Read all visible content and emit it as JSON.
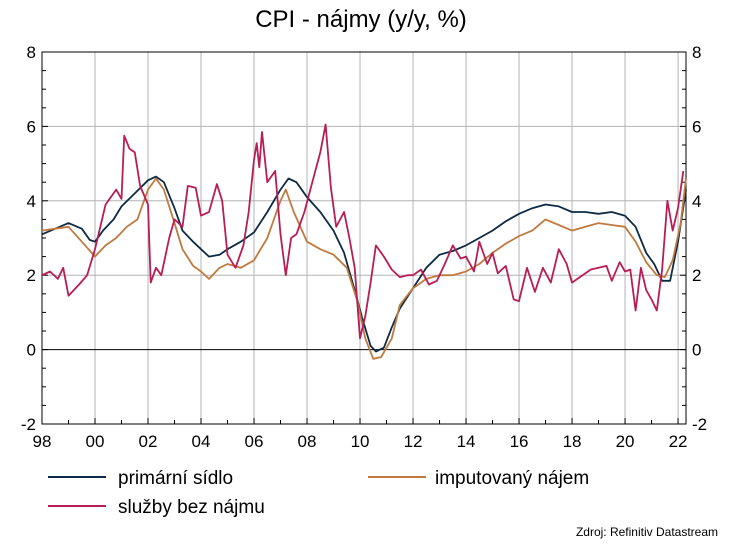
{
  "chart_data": {
    "type": "line",
    "title": "CPI - nájmy (y/y, %)",
    "source": "Zdroj: Refinitiv Datastream",
    "x_axis": {
      "range": [
        1998,
        2022.3
      ],
      "ticks": [
        1998,
        2000,
        2002,
        2004,
        2006,
        2008,
        2010,
        2012,
        2014,
        2016,
        2018,
        2020,
        2022
      ],
      "tick_labels": [
        "98",
        "00",
        "02",
        "04",
        "06",
        "08",
        "10",
        "12",
        "14",
        "16",
        "18",
        "20",
        "22"
      ]
    },
    "y_axis": {
      "range": [
        -2,
        8
      ],
      "ticks": [
        -2,
        0,
        2,
        4,
        6,
        8
      ],
      "tick_labels": [
        "-2",
        "0",
        "2",
        "4",
        "6",
        "8"
      ],
      "dual_axis": true
    },
    "grid": true,
    "legend_position": "bottom",
    "series": [
      {
        "name": "primární sídlo",
        "color": "#0d2b45",
        "points": [
          [
            1998.0,
            3.1
          ],
          [
            1998.5,
            3.25
          ],
          [
            1999.0,
            3.4
          ],
          [
            1999.5,
            3.25
          ],
          [
            1999.8,
            2.95
          ],
          [
            2000.0,
            2.9
          ],
          [
            2000.3,
            3.2
          ],
          [
            2000.7,
            3.5
          ],
          [
            2001.0,
            3.85
          ],
          [
            2001.5,
            4.2
          ],
          [
            2002.0,
            4.55
          ],
          [
            2002.3,
            4.65
          ],
          [
            2002.6,
            4.5
          ],
          [
            2003.0,
            3.8
          ],
          [
            2003.3,
            3.2
          ],
          [
            2003.7,
            2.9
          ],
          [
            2004.0,
            2.7
          ],
          [
            2004.3,
            2.5
          ],
          [
            2004.7,
            2.55
          ],
          [
            2005.0,
            2.7
          ],
          [
            2005.5,
            2.9
          ],
          [
            2006.0,
            3.15
          ],
          [
            2006.5,
            3.7
          ],
          [
            2007.0,
            4.3
          ],
          [
            2007.3,
            4.6
          ],
          [
            2007.6,
            4.5
          ],
          [
            2008.0,
            4.1
          ],
          [
            2008.5,
            3.7
          ],
          [
            2009.0,
            3.2
          ],
          [
            2009.4,
            2.6
          ],
          [
            2009.8,
            1.6
          ],
          [
            2010.1,
            0.8
          ],
          [
            2010.4,
            0.1
          ],
          [
            2010.6,
            -0.05
          ],
          [
            2010.9,
            0.05
          ],
          [
            2011.2,
            0.6
          ],
          [
            2011.5,
            1.1
          ],
          [
            2012.0,
            1.65
          ],
          [
            2012.5,
            2.2
          ],
          [
            2013.0,
            2.55
          ],
          [
            2013.5,
            2.65
          ],
          [
            2014.0,
            2.8
          ],
          [
            2014.5,
            3.0
          ],
          [
            2015.0,
            3.2
          ],
          [
            2015.5,
            3.45
          ],
          [
            2016.0,
            3.65
          ],
          [
            2016.5,
            3.8
          ],
          [
            2017.0,
            3.9
          ],
          [
            2017.5,
            3.85
          ],
          [
            2018.0,
            3.7
          ],
          [
            2018.5,
            3.7
          ],
          [
            2019.0,
            3.65
          ],
          [
            2019.5,
            3.7
          ],
          [
            2020.0,
            3.6
          ],
          [
            2020.4,
            3.3
          ],
          [
            2020.8,
            2.6
          ],
          [
            2021.1,
            2.3
          ],
          [
            2021.4,
            1.85
          ],
          [
            2021.7,
            1.85
          ],
          [
            2022.0,
            2.9
          ],
          [
            2022.3,
            4.3
          ]
        ]
      },
      {
        "name": "imputovaný nájem",
        "color": "#c07a3f",
        "points": [
          [
            1998.0,
            3.2
          ],
          [
            1998.5,
            3.25
          ],
          [
            1999.0,
            3.3
          ],
          [
            1999.5,
            2.9
          ],
          [
            2000.0,
            2.5
          ],
          [
            2000.4,
            2.8
          ],
          [
            2000.8,
            3.0
          ],
          [
            2001.2,
            3.3
          ],
          [
            2001.6,
            3.5
          ],
          [
            2002.0,
            4.3
          ],
          [
            2002.3,
            4.6
          ],
          [
            2002.6,
            4.3
          ],
          [
            2003.0,
            3.4
          ],
          [
            2003.3,
            2.7
          ],
          [
            2003.7,
            2.25
          ],
          [
            2004.0,
            2.1
          ],
          [
            2004.3,
            1.9
          ],
          [
            2004.7,
            2.2
          ],
          [
            2005.0,
            2.3
          ],
          [
            2005.5,
            2.2
          ],
          [
            2006.0,
            2.4
          ],
          [
            2006.5,
            3.0
          ],
          [
            2007.0,
            4.0
          ],
          [
            2007.2,
            4.3
          ],
          [
            2007.5,
            3.7
          ],
          [
            2008.0,
            2.9
          ],
          [
            2008.5,
            2.7
          ],
          [
            2009.0,
            2.55
          ],
          [
            2009.5,
            2.2
          ],
          [
            2009.9,
            1.3
          ],
          [
            2010.2,
            0.3
          ],
          [
            2010.5,
            -0.25
          ],
          [
            2010.8,
            -0.2
          ],
          [
            2011.2,
            0.3
          ],
          [
            2011.5,
            1.2
          ],
          [
            2012.0,
            1.65
          ],
          [
            2012.5,
            1.9
          ],
          [
            2013.0,
            2.0
          ],
          [
            2013.5,
            2.0
          ],
          [
            2014.0,
            2.1
          ],
          [
            2014.5,
            2.3
          ],
          [
            2015.0,
            2.6
          ],
          [
            2015.5,
            2.85
          ],
          [
            2016.0,
            3.05
          ],
          [
            2016.5,
            3.2
          ],
          [
            2017.0,
            3.5
          ],
          [
            2017.5,
            3.35
          ],
          [
            2018.0,
            3.2
          ],
          [
            2018.5,
            3.3
          ],
          [
            2019.0,
            3.4
          ],
          [
            2019.5,
            3.35
          ],
          [
            2020.0,
            3.3
          ],
          [
            2020.4,
            2.9
          ],
          [
            2020.8,
            2.35
          ],
          [
            2021.2,
            2.0
          ],
          [
            2021.5,
            1.95
          ],
          [
            2021.8,
            2.4
          ],
          [
            2022.1,
            3.4
          ],
          [
            2022.3,
            4.6
          ]
        ]
      },
      {
        "name": "služby bez nájmu",
        "color": "#b81d55",
        "points": [
          [
            1998.0,
            2.0
          ],
          [
            1998.3,
            2.1
          ],
          [
            1998.6,
            1.9
          ],
          [
            1998.8,
            2.2
          ],
          [
            1999.0,
            1.45
          ],
          [
            1999.4,
            1.75
          ],
          [
            1999.7,
            2.0
          ],
          [
            2000.0,
            2.7
          ],
          [
            2000.4,
            3.9
          ],
          [
            2000.8,
            4.3
          ],
          [
            2001.0,
            4.05
          ],
          [
            2001.1,
            5.75
          ],
          [
            2001.3,
            5.4
          ],
          [
            2001.5,
            5.3
          ],
          [
            2001.7,
            4.4
          ],
          [
            2002.0,
            3.9
          ],
          [
            2002.1,
            1.8
          ],
          [
            2002.3,
            2.2
          ],
          [
            2002.5,
            2.0
          ],
          [
            2002.8,
            3.0
          ],
          [
            2003.0,
            3.5
          ],
          [
            2003.3,
            3.3
          ],
          [
            2003.5,
            4.4
          ],
          [
            2003.8,
            4.35
          ],
          [
            2004.0,
            3.6
          ],
          [
            2004.3,
            3.7
          ],
          [
            2004.6,
            4.45
          ],
          [
            2004.8,
            4.0
          ],
          [
            2005.0,
            2.55
          ],
          [
            2005.3,
            2.2
          ],
          [
            2005.6,
            2.8
          ],
          [
            2005.8,
            3.7
          ],
          [
            2006.0,
            5.1
          ],
          [
            2006.1,
            5.55
          ],
          [
            2006.2,
            4.9
          ],
          [
            2006.3,
            5.85
          ],
          [
            2006.5,
            4.5
          ],
          [
            2006.8,
            4.8
          ],
          [
            2007.0,
            3.1
          ],
          [
            2007.2,
            2.0
          ],
          [
            2007.4,
            3.0
          ],
          [
            2007.6,
            3.1
          ],
          [
            2007.9,
            3.7
          ],
          [
            2008.2,
            4.5
          ],
          [
            2008.5,
            5.3
          ],
          [
            2008.7,
            6.05
          ],
          [
            2008.9,
            4.35
          ],
          [
            2009.1,
            3.3
          ],
          [
            2009.4,
            3.7
          ],
          [
            2009.6,
            3.0
          ],
          [
            2009.8,
            2.2
          ],
          [
            2010.0,
            0.3
          ],
          [
            2010.2,
            0.9
          ],
          [
            2010.4,
            1.8
          ],
          [
            2010.6,
            2.8
          ],
          [
            2010.9,
            2.5
          ],
          [
            2011.2,
            2.15
          ],
          [
            2011.5,
            1.95
          ],
          [
            2011.8,
            2.0
          ],
          [
            2012.0,
            2.0
          ],
          [
            2012.3,
            2.15
          ],
          [
            2012.6,
            1.75
          ],
          [
            2012.9,
            1.85
          ],
          [
            2013.2,
            2.3
          ],
          [
            2013.5,
            2.8
          ],
          [
            2013.8,
            2.45
          ],
          [
            2014.0,
            2.5
          ],
          [
            2014.3,
            2.1
          ],
          [
            2014.5,
            2.9
          ],
          [
            2014.8,
            2.3
          ],
          [
            2015.0,
            2.6
          ],
          [
            2015.2,
            2.05
          ],
          [
            2015.5,
            2.25
          ],
          [
            2015.8,
            1.35
          ],
          [
            2016.0,
            1.3
          ],
          [
            2016.3,
            2.2
          ],
          [
            2016.6,
            1.55
          ],
          [
            2016.9,
            2.2
          ],
          [
            2017.2,
            1.8
          ],
          [
            2017.5,
            2.7
          ],
          [
            2017.8,
            2.3
          ],
          [
            2018.0,
            1.8
          ],
          [
            2018.4,
            2.0
          ],
          [
            2018.7,
            2.15
          ],
          [
            2019.0,
            2.2
          ],
          [
            2019.3,
            2.25
          ],
          [
            2019.5,
            1.85
          ],
          [
            2019.8,
            2.35
          ],
          [
            2020.0,
            2.1
          ],
          [
            2020.2,
            2.15
          ],
          [
            2020.4,
            1.05
          ],
          [
            2020.6,
            2.2
          ],
          [
            2020.8,
            1.6
          ],
          [
            2021.0,
            1.35
          ],
          [
            2021.2,
            1.05
          ],
          [
            2021.4,
            2.15
          ],
          [
            2021.6,
            4.0
          ],
          [
            2021.8,
            3.2
          ],
          [
            2022.0,
            3.8
          ],
          [
            2022.2,
            4.8
          ]
        ]
      }
    ]
  }
}
